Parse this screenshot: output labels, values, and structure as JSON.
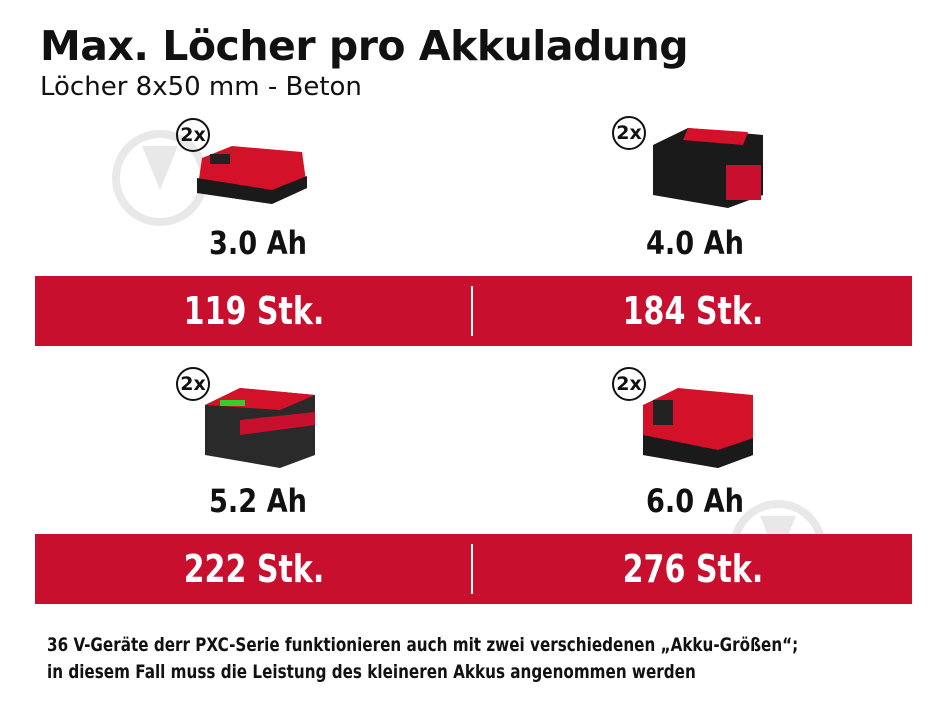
{
  "title": "Max. Löcher pro Akkuladung",
  "subtitle": "Löcher 8x50 mm - Beton",
  "colors": {
    "band": "#c8102e",
    "text": "#111111"
  },
  "batteries": [
    {
      "badge": "2x",
      "capacity": "3.0 Ah",
      "holes": "119 Stk."
    },
    {
      "badge": "2x",
      "capacity": "4.0 Ah",
      "holes": "184 Stk."
    },
    {
      "badge": "2x",
      "capacity": "5.2 Ah",
      "holes": "222 Stk."
    },
    {
      "badge": "2x",
      "capacity": "6.0 Ah",
      "holes": "276 Stk."
    }
  ],
  "note": [
    "36 V-Geräte derr PXC-Serie funktionieren auch mit zwei verschiedenen „Akku-Größen“;",
    "in diesem Fall muss die Leistung des kleineren Akkus angenommen werden"
  ]
}
